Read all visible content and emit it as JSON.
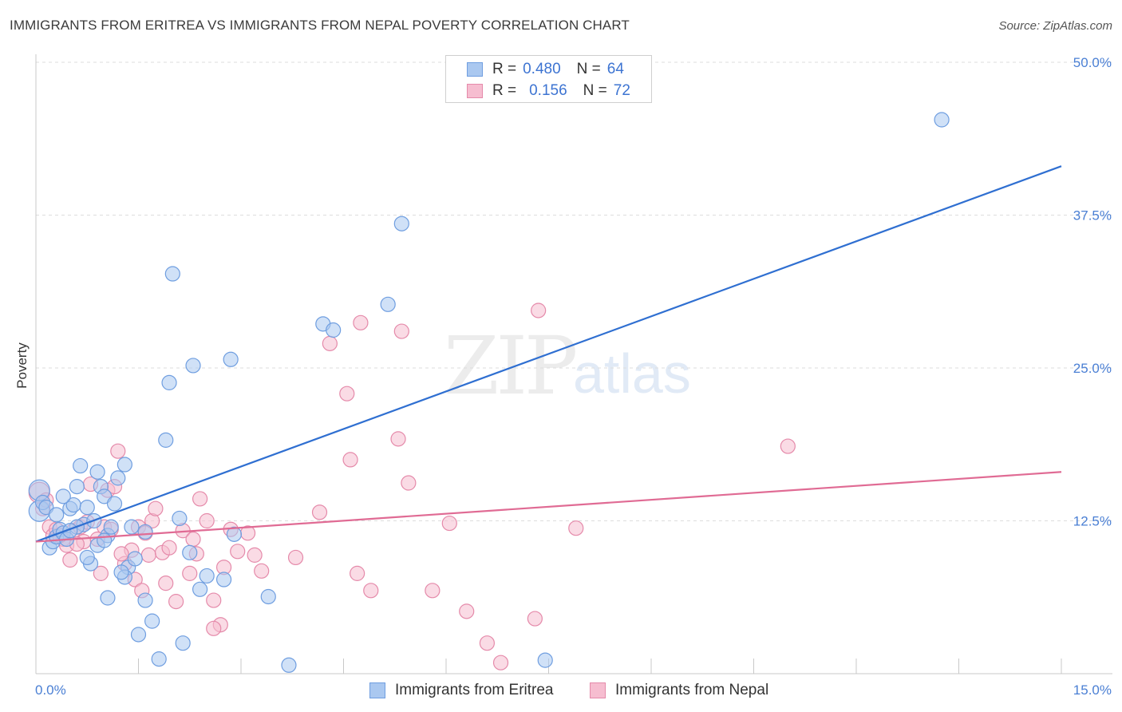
{
  "title": "IMMIGRANTS FROM ERITREA VS IMMIGRANTS FROM NEPAL POVERTY CORRELATION CHART",
  "source": "Source: ZipAtlas.com",
  "watermark": {
    "zip": "ZIP",
    "atlas": "atlas"
  },
  "legend_top": [
    {
      "r_label": "R =",
      "r_value": "0.480",
      "n_label": "N =",
      "n_value": "64"
    },
    {
      "r_label": "R =",
      "r_value": "0.156",
      "n_label": "N =",
      "n_value": "72"
    }
  ],
  "legend_bottom": [
    "Immigrants from Eritrea",
    "Immigrants from Nepal"
  ],
  "colors": {
    "eritrea_fill": "#aac8f0",
    "eritrea_stroke": "#6f9ee0",
    "eritrea_line": "#2f6fd1",
    "nepal_fill": "#f6bdd0",
    "nepal_stroke": "#e58aaa",
    "nepal_line": "#e06b94",
    "tick_label": "#4a7fd4",
    "grid": "#dddddd"
  },
  "chart_data": {
    "type": "scatter",
    "title": "IMMIGRANTS FROM ERITREA VS IMMIGRANTS FROM NEPAL POVERTY CORRELATION CHART",
    "xlabel": "",
    "ylabel": "Poverty",
    "xlim": [
      0,
      15
    ],
    "ylim": [
      0,
      50
    ],
    "x_tick_labels": [
      "0.0%",
      "15.0%"
    ],
    "y_ticks": [
      12.5,
      25,
      37.5,
      50
    ],
    "y_tick_labels": [
      "12.5%",
      "25.0%",
      "37.5%",
      "50.0%"
    ],
    "series": [
      {
        "name": "Immigrants from Eritrea",
        "r": 0.48,
        "n": 64,
        "trend": [
          [
            0,
            10.8
          ],
          [
            15,
            41.5
          ]
        ],
        "points": [
          [
            0.05,
            15.0
          ],
          [
            0.05,
            13.3
          ],
          [
            0.1,
            14.0
          ],
          [
            0.15,
            13.6
          ],
          [
            0.2,
            10.3
          ],
          [
            0.25,
            10.8
          ],
          [
            0.3,
            11.2
          ],
          [
            0.35,
            11.8
          ],
          [
            0.4,
            11.5
          ],
          [
            0.45,
            11.0
          ],
          [
            0.5,
            13.5
          ],
          [
            0.55,
            13.8
          ],
          [
            0.6,
            15.3
          ],
          [
            0.65,
            17.0
          ],
          [
            0.7,
            12.2
          ],
          [
            0.75,
            13.6
          ],
          [
            0.8,
            9.0
          ],
          [
            0.85,
            12.5
          ],
          [
            0.9,
            16.5
          ],
          [
            0.95,
            15.3
          ],
          [
            1.0,
            14.5
          ],
          [
            1.05,
            11.3
          ],
          [
            1.1,
            12.0
          ],
          [
            1.2,
            16.0
          ],
          [
            1.3,
            17.1
          ],
          [
            1.35,
            8.7
          ],
          [
            1.4,
            12.0
          ],
          [
            1.5,
            3.2
          ],
          [
            1.6,
            6.0
          ],
          [
            1.7,
            4.3
          ],
          [
            1.8,
            1.2
          ],
          [
            1.9,
            19.1
          ],
          [
            1.95,
            23.8
          ],
          [
            2.0,
            32.7
          ],
          [
            2.1,
            12.7
          ],
          [
            2.15,
            2.5
          ],
          [
            2.25,
            9.9
          ],
          [
            2.3,
            25.2
          ],
          [
            2.4,
            6.9
          ],
          [
            2.5,
            8.0
          ],
          [
            2.85,
            25.7
          ],
          [
            2.9,
            11.4
          ],
          [
            3.4,
            6.3
          ],
          [
            3.7,
            0.7
          ],
          [
            4.2,
            28.6
          ],
          [
            4.35,
            28.1
          ],
          [
            5.15,
            30.2
          ],
          [
            5.35,
            36.8
          ],
          [
            0.6,
            12.0
          ],
          [
            0.9,
            10.5
          ],
          [
            1.05,
            6.2
          ],
          [
            1.3,
            7.9
          ],
          [
            0.75,
            9.5
          ],
          [
            1.25,
            8.3
          ],
          [
            1.0,
            10.9
          ],
          [
            1.45,
            9.4
          ],
          [
            0.3,
            13.0
          ],
          [
            0.4,
            14.5
          ],
          [
            0.5,
            11.7
          ],
          [
            1.15,
            13.9
          ],
          [
            2.75,
            7.7
          ],
          [
            7.45,
            1.1
          ],
          [
            13.25,
            45.3
          ],
          [
            1.6,
            11.6
          ]
        ]
      },
      {
        "name": "Immigrants from Nepal",
        "r": 0.156,
        "n": 72,
        "trend": [
          [
            0,
            10.8
          ],
          [
            15,
            16.5
          ]
        ],
        "points": [
          [
            0.05,
            14.8
          ],
          [
            0.1,
            13.5
          ],
          [
            0.15,
            14.2
          ],
          [
            0.2,
            12.0
          ],
          [
            0.25,
            11.3
          ],
          [
            0.3,
            11.8
          ],
          [
            0.4,
            11.0
          ],
          [
            0.45,
            10.5
          ],
          [
            0.5,
            9.3
          ],
          [
            0.55,
            11.7
          ],
          [
            0.65,
            12.0
          ],
          [
            0.7,
            10.8
          ],
          [
            0.75,
            12.4
          ],
          [
            0.8,
            15.5
          ],
          [
            0.9,
            11.0
          ],
          [
            0.95,
            8.2
          ],
          [
            1.0,
            12.0
          ],
          [
            1.05,
            15.0
          ],
          [
            1.1,
            11.8
          ],
          [
            1.15,
            15.3
          ],
          [
            1.2,
            18.2
          ],
          [
            1.3,
            9.0
          ],
          [
            1.4,
            10.1
          ],
          [
            1.45,
            7.7
          ],
          [
            1.5,
            12.0
          ],
          [
            1.55,
            6.8
          ],
          [
            1.6,
            11.5
          ],
          [
            1.65,
            9.7
          ],
          [
            1.7,
            12.5
          ],
          [
            1.75,
            13.5
          ],
          [
            1.85,
            9.9
          ],
          [
            1.9,
            7.4
          ],
          [
            1.95,
            10.3
          ],
          [
            2.05,
            5.9
          ],
          [
            2.15,
            11.7
          ],
          [
            2.25,
            8.2
          ],
          [
            2.3,
            11.0
          ],
          [
            2.35,
            9.8
          ],
          [
            2.4,
            14.3
          ],
          [
            2.5,
            12.5
          ],
          [
            2.6,
            6.0
          ],
          [
            2.7,
            4.0
          ],
          [
            2.75,
            8.7
          ],
          [
            2.85,
            11.8
          ],
          [
            2.95,
            10.0
          ],
          [
            3.1,
            11.5
          ],
          [
            3.2,
            9.7
          ],
          [
            3.3,
            8.4
          ],
          [
            3.8,
            9.5
          ],
          [
            4.15,
            13.2
          ],
          [
            4.3,
            27.0
          ],
          [
            4.55,
            22.9
          ],
          [
            4.6,
            17.5
          ],
          [
            4.7,
            8.2
          ],
          [
            4.75,
            28.7
          ],
          [
            4.9,
            6.8
          ],
          [
            5.3,
            19.2
          ],
          [
            5.35,
            28.0
          ],
          [
            5.45,
            15.6
          ],
          [
            5.8,
            6.8
          ],
          [
            6.05,
            12.3
          ],
          [
            6.3,
            5.1
          ],
          [
            6.6,
            2.5
          ],
          [
            6.8,
            0.9
          ],
          [
            7.3,
            4.5
          ],
          [
            7.35,
            29.7
          ],
          [
            7.9,
            11.9
          ],
          [
            11.0,
            18.6
          ],
          [
            0.35,
            11.3
          ],
          [
            0.6,
            10.6
          ],
          [
            1.25,
            9.8
          ],
          [
            2.6,
            3.7
          ]
        ]
      }
    ]
  }
}
